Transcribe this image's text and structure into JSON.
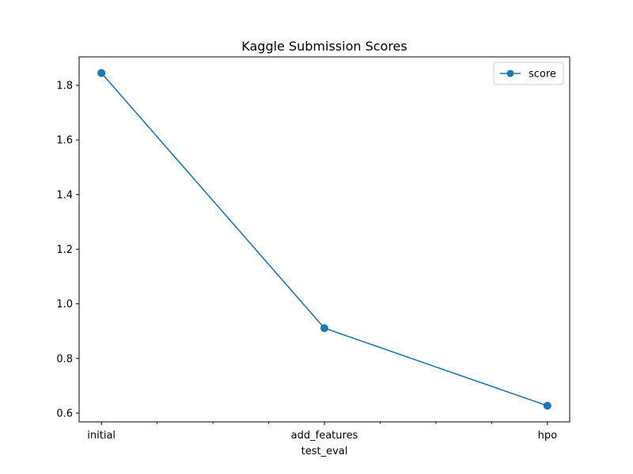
{
  "chart_data": {
    "type": "line",
    "title": "Kaggle Submission Scores",
    "xlabel": "test_eval",
    "ylabel": "",
    "categories": [
      "initial",
      "add_features",
      "hpo"
    ],
    "series": [
      {
        "name": "score",
        "color": "#1f77b4",
        "marker": "circle",
        "values": [
          1.845,
          0.911,
          0.627
        ]
      }
    ],
    "ylim": [
      0.568,
      1.904
    ],
    "yticks": [
      0.6,
      0.8,
      1.0,
      1.2,
      1.4,
      1.6,
      1.8
    ],
    "ytick_labels": [
      "0.6",
      "0.8",
      "1.0",
      "1.2",
      "1.4",
      "1.6",
      "1.8"
    ],
    "xlim": [
      -0.1,
      2.1
    ],
    "minor_xticks": [
      0.25,
      0.5,
      0.75,
      1.25,
      1.5,
      1.75
    ],
    "grid": false,
    "legend_position": "upper-right"
  }
}
